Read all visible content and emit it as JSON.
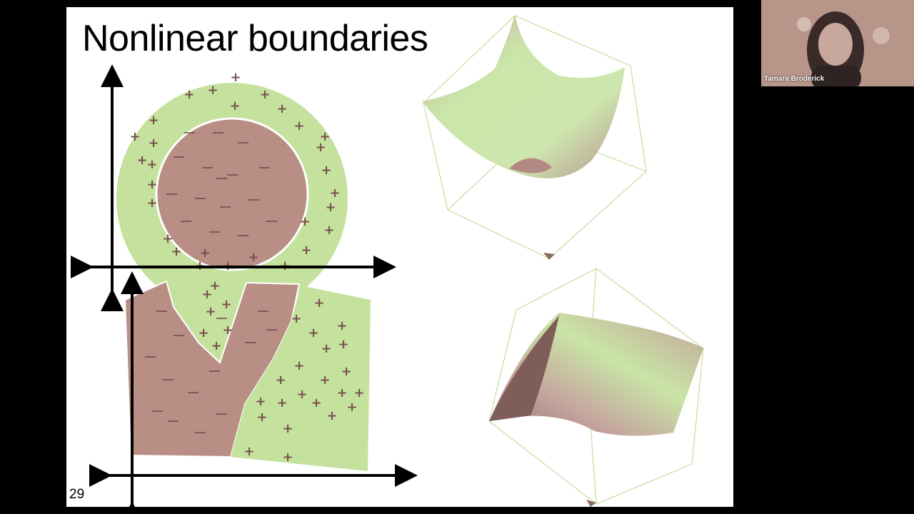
{
  "slide": {
    "title": "Nonlinear boundaries",
    "page_number": "29"
  },
  "participant": {
    "name": "Tamara Broderick"
  },
  "colors": {
    "positive_region": "#c4e29d",
    "negative_region": "#b88e85",
    "axis": "#000000",
    "screen_background": "#000000",
    "slide_background": "#ffffff"
  }
}
